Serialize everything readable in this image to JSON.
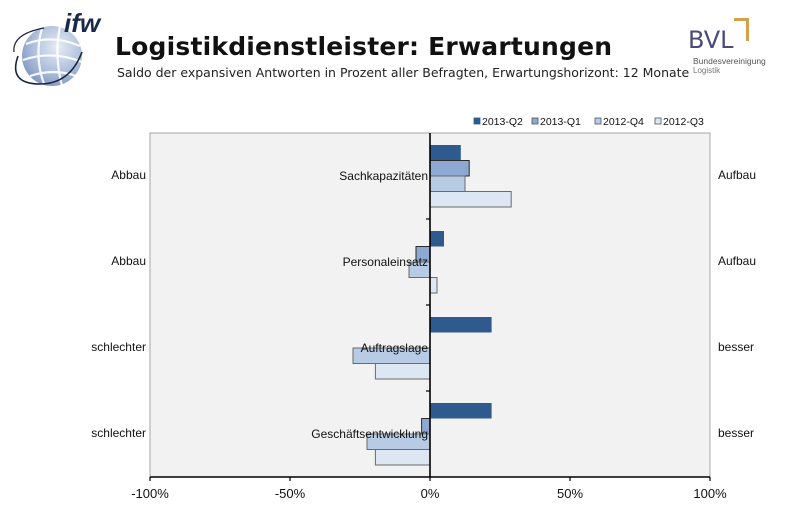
{
  "header": {
    "title": "Logistikdienstleister: Erwartungen",
    "subtitle": "Saldo der expansiven Antworten in Prozent aller Befragten, Erwartungshorizont: 12 Monate",
    "logo_left": "ifw",
    "logo_right": "BVL",
    "logo_right_sub1": "Bundesvereinigung",
    "logo_right_sub2": "Logistik"
  },
  "colors": {
    "2013-Q2": "#2e5a8e",
    "2013-Q1": "#8ea9d1",
    "2012-Q4": "#b7cbe5",
    "2012-Q3": "#dde6f3",
    "plot_bg": "#f2f2f2"
  },
  "chart_data": {
    "type": "bar",
    "orientation": "horizontal",
    "title": "Logistikdienstleister: Erwartungen",
    "subtitle": "Saldo der expansiven Antworten in Prozent aller Befragten, Erwartungshorizont: 12 Monate",
    "categories": [
      "Sachkapazitäten",
      "Personaleinsatz",
      "Auftragslage",
      "Geschäftsentwicklung"
    ],
    "left_labels": [
      "Abbau",
      "Abbau",
      "schlechter",
      "schlechter"
    ],
    "right_labels": [
      "Aufbau",
      "Aufbau",
      "besser",
      "besser"
    ],
    "series": [
      {
        "name": "2013-Q2",
        "values": [
          11,
          5,
          22,
          22
        ]
      },
      {
        "name": "2013-Q1",
        "values": [
          14,
          -5,
          0,
          -3
        ]
      },
      {
        "name": "2012-Q4",
        "values": [
          12.5,
          -7.5,
          -27.5,
          -22.5
        ]
      },
      {
        "name": "2012-Q3",
        "values": [
          29,
          2.5,
          -19.5,
          -19.5
        ]
      }
    ],
    "xlim": [
      -100,
      100
    ],
    "xticks": [
      -100,
      -50,
      0,
      50,
      100
    ],
    "xtick_labels": [
      "-100%",
      "-50%",
      "0%",
      "50%",
      "100%"
    ],
    "xlabel": "",
    "ylabel": "",
    "grid": false,
    "legend_position": "top-right"
  }
}
